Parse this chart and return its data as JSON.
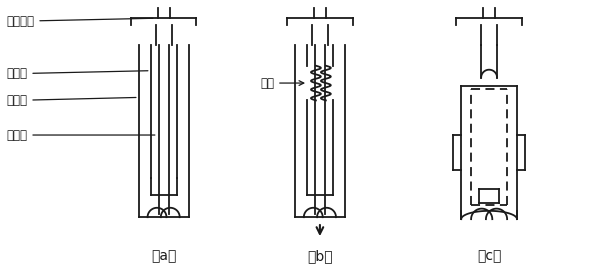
{
  "bg_color": "#ffffff",
  "line_color": "#1a1a1a",
  "labels_a": [
    "上部电极",
    "消弧棒",
    "消弧管",
    "燕丝管"
  ],
  "label_b": "电弧",
  "caption_a": "（a）",
  "caption_b": "（b）",
  "caption_c": "（c）",
  "fig_width": 5.98,
  "fig_height": 2.75,
  "dpi": 100
}
